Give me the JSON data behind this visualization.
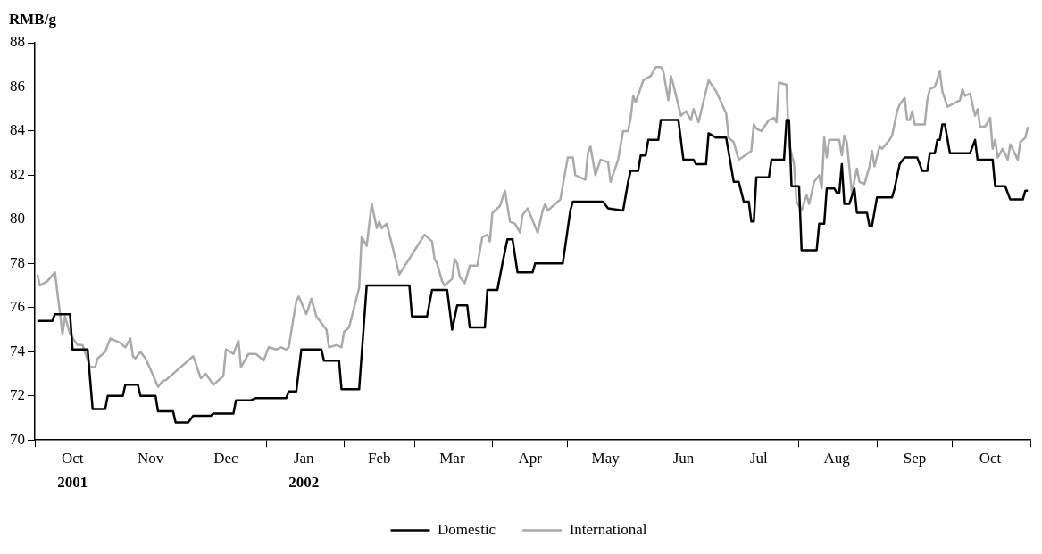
{
  "chart_data": {
    "type": "line",
    "ylabel": "RMB/g",
    "ylim": [
      70,
      88
    ],
    "yticks": [
      70,
      72,
      74,
      76,
      78,
      80,
      82,
      84,
      86,
      88
    ],
    "xlim": [
      "2001-10-01",
      "2002-11-01"
    ],
    "xticks": [
      {
        "value": "2001-10-01",
        "label": null
      },
      {
        "value": "2001-10-16",
        "label": "Oct"
      },
      {
        "value": "2001-11-01",
        "label": null
      },
      {
        "value": "2001-11-16",
        "label": "Nov"
      },
      {
        "value": "2001-12-01",
        "label": null
      },
      {
        "value": "2001-12-16",
        "label": "Dec"
      },
      {
        "value": "2002-01-01",
        "label": null
      },
      {
        "value": "2002-01-16",
        "label": "Jan"
      },
      {
        "value": "2002-02-01",
        "label": null
      },
      {
        "value": "2002-02-15",
        "label": "Feb"
      },
      {
        "value": "2002-03-01",
        "label": null
      },
      {
        "value": "2002-03-16",
        "label": "Mar"
      },
      {
        "value": "2002-04-01",
        "label": null
      },
      {
        "value": "2002-04-16",
        "label": "Apr"
      },
      {
        "value": "2002-05-01",
        "label": null
      },
      {
        "value": "2002-05-16",
        "label": "May"
      },
      {
        "value": "2002-06-01",
        "label": null
      },
      {
        "value": "2002-06-16",
        "label": "Jun"
      },
      {
        "value": "2002-07-01",
        "label": null
      },
      {
        "value": "2002-07-16",
        "label": "Jul"
      },
      {
        "value": "2002-08-01",
        "label": null
      },
      {
        "value": "2002-08-16",
        "label": "Aug"
      },
      {
        "value": "2002-09-01",
        "label": null
      },
      {
        "value": "2002-09-16",
        "label": "Sep"
      },
      {
        "value": "2002-10-01",
        "label": null
      },
      {
        "value": "2002-10-16",
        "label": "Oct"
      },
      {
        "value": "2002-11-01",
        "label": null
      }
    ],
    "x2lim": [
      "2001-10-01",
      "2002-11-01"
    ],
    "x2ticks": [
      {
        "value": "2001-10-16",
        "label": "2001"
      },
      {
        "value": "2002-01-16",
        "label": "2002"
      }
    ],
    "legend": "bottom",
    "series": [
      {
        "name": "Domestic",
        "color": "#000000",
        "x": [
          "2001-10-02",
          "2001-10-08",
          "2001-10-09",
          "2001-10-15",
          "2001-10-16",
          "2001-10-22",
          "2001-10-24",
          "2001-10-29",
          "2001-10-30",
          "2001-11-05",
          "2001-11-06",
          "2001-11-11",
          "2001-11-12",
          "2001-11-18",
          "2001-11-19",
          "2001-11-25",
          "2001-11-26",
          "2001-12-01",
          "2001-12-03",
          "2001-12-10",
          "2001-12-11",
          "2001-12-19",
          "2001-12-20",
          "2001-12-26",
          "2001-12-28",
          "2002-01-09",
          "2002-01-10",
          "2002-01-13",
          "2002-01-15",
          "2002-01-23",
          "2002-01-24",
          "2002-01-30",
          "2002-01-31",
          "2002-02-07",
          "2002-02-10",
          "2002-02-27",
          "2002-02-28",
          "2002-03-06",
          "2002-03-08",
          "2002-03-14",
          "2002-03-16",
          "2002-03-18",
          "2002-03-22",
          "2002-03-23",
          "2002-03-29",
          "2002-03-30",
          "2002-04-03",
          "2002-04-05",
          "2002-04-07",
          "2002-04-09",
          "2002-04-11",
          "2002-04-17",
          "2002-04-18",
          "2002-04-29",
          "2002-05-02",
          "2002-05-03",
          "2002-05-15",
          "2002-05-17",
          "2002-05-23",
          "2002-05-25",
          "2002-05-26",
          "2002-05-29",
          "2002-05-30",
          "2002-06-01",
          "2002-06-02",
          "2002-06-06",
          "2002-06-07",
          "2002-06-14",
          "2002-06-16",
          "2002-06-20",
          "2002-06-21",
          "2002-06-25",
          "2002-06-26",
          "2002-06-29",
          "2002-07-03",
          "2002-07-06",
          "2002-07-08",
          "2002-07-10",
          "2002-07-12",
          "2002-07-13",
          "2002-07-14",
          "2002-07-15",
          "2002-07-20",
          "2002-07-21",
          "2002-07-26",
          "2002-07-27",
          "2002-07-28",
          "2002-07-29",
          "2002-08-01",
          "2002-08-02",
          "2002-08-08",
          "2002-08-09",
          "2002-08-11",
          "2002-08-12",
          "2002-08-15",
          "2002-08-16",
          "2002-08-17",
          "2002-08-18",
          "2002-08-19",
          "2002-08-21",
          "2002-08-23",
          "2002-08-24",
          "2002-08-28",
          "2002-08-29",
          "2002-08-30",
          "2002-09-01",
          "2002-09-07",
          "2002-09-08",
          "2002-09-10",
          "2002-09-12",
          "2002-09-17",
          "2002-09-19",
          "2002-09-21",
          "2002-09-22",
          "2002-09-24",
          "2002-09-25",
          "2002-09-26",
          "2002-09-27",
          "2002-09-28",
          "2002-09-30",
          "2002-10-08",
          "2002-10-10",
          "2002-10-11",
          "2002-10-17",
          "2002-10-18",
          "2002-10-22",
          "2002-10-24",
          "2002-10-29",
          "2002-10-30",
          "2002-10-31"
        ],
        "values": [
          75.4,
          75.4,
          75.7,
          75.7,
          74.1,
          74.1,
          71.4,
          71.4,
          72.0,
          72.0,
          72.5,
          72.5,
          72.0,
          72.0,
          71.3,
          71.3,
          70.8,
          70.8,
          71.1,
          71.1,
          71.2,
          71.2,
          71.8,
          71.8,
          71.9,
          71.9,
          72.2,
          72.2,
          74.1,
          74.1,
          73.6,
          73.6,
          72.3,
          72.3,
          77.0,
          77.0,
          75.6,
          75.6,
          76.8,
          76.8,
          75.0,
          76.1,
          76.1,
          75.1,
          75.1,
          76.8,
          76.8,
          78.0,
          79.1,
          79.1,
          77.6,
          77.6,
          78.0,
          78.0,
          80.4,
          80.8,
          80.8,
          80.5,
          80.4,
          81.7,
          82.2,
          82.2,
          82.9,
          82.9,
          83.6,
          83.6,
          84.5,
          84.5,
          82.7,
          82.7,
          82.5,
          82.5,
          83.9,
          83.7,
          83.7,
          81.7,
          81.7,
          80.8,
          80.8,
          79.9,
          79.9,
          81.9,
          81.9,
          82.7,
          82.7,
          84.5,
          84.5,
          81.5,
          81.5,
          78.6,
          78.6,
          79.8,
          79.8,
          81.4,
          81.4,
          81.2,
          81.2,
          82.5,
          80.7,
          80.7,
          81.4,
          80.3,
          80.3,
          79.7,
          79.7,
          81.0,
          81.0,
          81.4,
          82.5,
          82.8,
          82.8,
          82.2,
          82.2,
          83.0,
          83.0,
          83.6,
          83.6,
          84.3,
          84.3,
          83.0,
          83.0,
          83.6,
          82.7,
          82.7,
          81.5,
          81.5,
          80.9,
          80.9,
          81.3,
          81.3
        ]
      },
      {
        "name": "International",
        "color": "#aaaaaa",
        "x": [
          "2001-10-02",
          "2001-10-03",
          "2001-10-06",
          "2001-10-09",
          "2001-10-12",
          "2001-10-13",
          "2001-10-15",
          "2001-10-18",
          "2001-10-20",
          "2001-10-23",
          "2001-10-25",
          "2001-10-26",
          "2001-10-29",
          "2001-10-31",
          "2001-11-04",
          "2001-11-06",
          "2001-11-08",
          "2001-11-09",
          "2001-11-10",
          "2001-11-12",
          "2001-11-14",
          "2001-11-16",
          "2001-11-19",
          "2001-11-21",
          "2001-11-22",
          "2001-12-03",
          "2001-12-06",
          "2001-12-08",
          "2001-12-11",
          "2001-12-15",
          "2001-12-16",
          "2001-12-19",
          "2001-12-21",
          "2001-12-22",
          "2001-12-25",
          "2001-12-28",
          "2001-12-31",
          "2002-01-02",
          "2002-01-05",
          "2002-01-07",
          "2002-01-09",
          "2002-01-10",
          "2002-01-13",
          "2002-01-14",
          "2002-01-17",
          "2002-01-19",
          "2002-01-21",
          "2002-01-25",
          "2002-01-26",
          "2002-01-29",
          "2002-01-31",
          "2002-02-01",
          "2002-02-03",
          "2002-02-07",
          "2002-02-08",
          "2002-02-10",
          "2002-02-12",
          "2002-02-14",
          "2002-02-15",
          "2002-02-16",
          "2002-02-18",
          "2002-02-23",
          "2002-03-05",
          "2002-03-08",
          "2002-03-09",
          "2002-03-10",
          "2002-03-12",
          "2002-03-13",
          "2002-03-16",
          "2002-03-17",
          "2002-03-18",
          "2002-03-19",
          "2002-03-21",
          "2002-03-23",
          "2002-03-26",
          "2002-03-28",
          "2002-03-30",
          "2002-03-31",
          "2002-04-01",
          "2002-04-04",
          "2002-04-06",
          "2002-04-08",
          "2002-04-10",
          "2002-04-12",
          "2002-04-13",
          "2002-04-15",
          "2002-04-19",
          "2002-04-21",
          "2002-04-22",
          "2002-04-23",
          "2002-04-28",
          "2002-05-01",
          "2002-05-03",
          "2002-05-04",
          "2002-05-08",
          "2002-05-09",
          "2002-05-10",
          "2002-05-12",
          "2002-05-14",
          "2002-05-17",
          "2002-05-18",
          "2002-05-21",
          "2002-05-23",
          "2002-05-25",
          "2002-05-26",
          "2002-05-27",
          "2002-05-28",
          "2002-05-31",
          "2002-06-03",
          "2002-06-05",
          "2002-06-07",
          "2002-06-08",
          "2002-06-10",
          "2002-06-11",
          "2002-06-12",
          "2002-06-15",
          "2002-06-17",
          "2002-06-19",
          "2002-06-20",
          "2002-06-22",
          "2002-06-26",
          "2002-06-29",
          "2002-07-01",
          "2002-07-03",
          "2002-07-04",
          "2002-07-06",
          "2002-07-08",
          "2002-07-13",
          "2002-07-14",
          "2002-07-15",
          "2002-07-17",
          "2002-07-20",
          "2002-07-22",
          "2002-07-23",
          "2002-07-24",
          "2002-07-27",
          "2002-07-28",
          "2002-07-30",
          "2002-07-31",
          "2002-08-02",
          "2002-08-04",
          "2002-08-05",
          "2002-08-07",
          "2002-08-09",
          "2002-08-10",
          "2002-08-11",
          "2002-08-12",
          "2002-08-13",
          "2002-08-17",
          "2002-08-18",
          "2002-08-19",
          "2002-08-20",
          "2002-08-22",
          "2002-08-24",
          "2002-08-25",
          "2002-08-27",
          "2002-08-29",
          "2002-08-30",
          "2002-08-31",
          "2002-09-02",
          "2002-09-03",
          "2002-09-06",
          "2002-09-07",
          "2002-09-09",
          "2002-09-10",
          "2002-09-12",
          "2002-09-13",
          "2002-09-14",
          "2002-09-15",
          "2002-09-16",
          "2002-09-20",
          "2002-09-21",
          "2002-09-22",
          "2002-09-24",
          "2002-09-26",
          "2002-09-27",
          "2002-09-29",
          "2002-10-04",
          "2002-10-05",
          "2002-10-06",
          "2002-10-08",
          "2002-10-10",
          "2002-10-11",
          "2002-10-12",
          "2002-10-14",
          "2002-10-16",
          "2002-10-17",
          "2002-10-18",
          "2002-10-19",
          "2002-10-21",
          "2002-10-23",
          "2002-10-24",
          "2002-10-27",
          "2002-10-28",
          "2002-10-30",
          "2002-10-31"
        ],
        "values": [
          77.5,
          77.0,
          77.2,
          77.6,
          74.8,
          75.6,
          74.8,
          74.3,
          74.3,
          73.3,
          73.3,
          73.7,
          74.0,
          74.6,
          74.4,
          74.2,
          74.6,
          73.8,
          73.7,
          74.0,
          73.7,
          73.2,
          72.4,
          72.7,
          72.7,
          73.8,
          72.8,
          73.0,
          72.5,
          72.9,
          74.1,
          73.9,
          74.5,
          73.3,
          73.9,
          73.9,
          73.6,
          74.2,
          74.1,
          74.2,
          74.1,
          74.2,
          76.3,
          76.5,
          75.7,
          76.4,
          75.6,
          75.0,
          74.2,
          74.3,
          74.2,
          74.9,
          75.1,
          76.9,
          79.2,
          78.8,
          80.7,
          79.6,
          79.9,
          79.6,
          79.8,
          77.5,
          79.3,
          79.0,
          78.2,
          78.0,
          77.2,
          77.0,
          77.3,
          78.2,
          78.0,
          77.4,
          77.1,
          77.9,
          77.9,
          79.2,
          79.3,
          79.0,
          80.3,
          80.6,
          81.3,
          79.9,
          79.8,
          79.4,
          80.2,
          80.5,
          79.4,
          80.4,
          80.7,
          80.4,
          80.9,
          82.8,
          82.8,
          82.0,
          81.8,
          83.0,
          83.3,
          82.0,
          82.7,
          82.6,
          81.7,
          82.7,
          84.0,
          84.0,
          84.6,
          85.6,
          85.3,
          86.3,
          86.5,
          86.9,
          86.9,
          86.7,
          85.4,
          86.5,
          86.1,
          84.7,
          84.9,
          84.5,
          85.0,
          84.4,
          86.3,
          85.8,
          85.3,
          84.8,
          83.7,
          83.5,
          82.7,
          83.1,
          84.3,
          84.1,
          84.0,
          84.5,
          84.6,
          84.4,
          86.2,
          86.1,
          83.4,
          82.5,
          80.8,
          80.4,
          81.1,
          80.7,
          81.7,
          82.0,
          81.4,
          83.7,
          82.8,
          83.6,
          83.6,
          82.9,
          83.8,
          83.5,
          81.2,
          82.3,
          81.7,
          81.6,
          82.4,
          83.1,
          82.4,
          83.3,
          83.2,
          83.6,
          83.8,
          84.9,
          85.2,
          85.5,
          84.5,
          84.5,
          84.9,
          84.3,
          84.3,
          85.4,
          85.9,
          86.0,
          86.7,
          85.8,
          85.1,
          85.4,
          85.9,
          85.6,
          85.7,
          84.7,
          85.0,
          84.2,
          84.2,
          84.6,
          83.2,
          83.6,
          82.8,
          83.2,
          82.7,
          83.4,
          82.7,
          83.5,
          83.7,
          84.2
        ]
      }
    ]
  }
}
